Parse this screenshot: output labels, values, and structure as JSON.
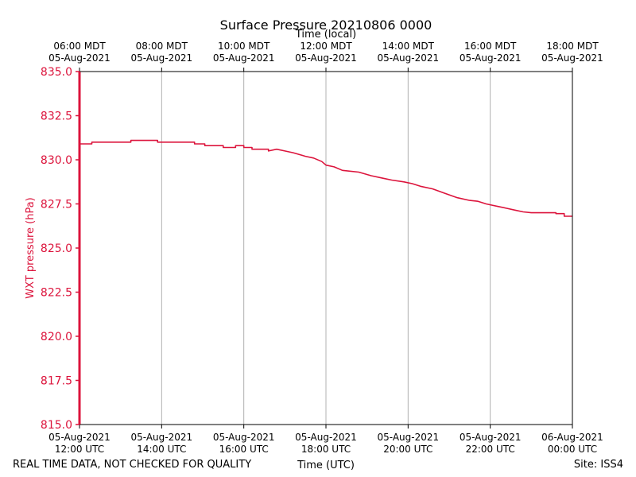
{
  "footer": {
    "disclaimer": "REAL TIME DATA, NOT CHECKED FOR QUALITY",
    "site": "Site: ISS4"
  },
  "chart_data": {
    "type": "line",
    "title": "Surface Pressure 20210806 0000",
    "xlabel_bottom": "Time (UTC)",
    "xlabel_top": "Time (local)",
    "ylabel": "WXT pressure (hPa)",
    "ylim": [
      815.0,
      835.0
    ],
    "xlim_hours_utc": [
      12,
      24
    ],
    "grid": "vertical",
    "colors": {
      "series": "#dc143c",
      "grid": "#b0b0b0",
      "axis": "#000000"
    },
    "yticks": [
      {
        "value": 815.0,
        "label": "815.0"
      },
      {
        "value": 817.5,
        "label": "817.5"
      },
      {
        "value": 820.0,
        "label": "820.0"
      },
      {
        "value": 822.5,
        "label": "822.5"
      },
      {
        "value": 825.0,
        "label": "825.0"
      },
      {
        "value": 827.5,
        "label": "827.5"
      },
      {
        "value": 830.0,
        "label": "830.0"
      },
      {
        "value": 832.5,
        "label": "832.5"
      },
      {
        "value": 835.0,
        "label": "835.0"
      }
    ],
    "xticks_bottom": [
      {
        "hour": 12,
        "date": "05-Aug-2021",
        "time": "12:00 UTC"
      },
      {
        "hour": 14,
        "date": "05-Aug-2021",
        "time": "14:00 UTC"
      },
      {
        "hour": 16,
        "date": "05-Aug-2021",
        "time": "16:00 UTC"
      },
      {
        "hour": 18,
        "date": "05-Aug-2021",
        "time": "18:00 UTC"
      },
      {
        "hour": 20,
        "date": "05-Aug-2021",
        "time": "20:00 UTC"
      },
      {
        "hour": 22,
        "date": "05-Aug-2021",
        "time": "22:00 UTC"
      },
      {
        "hour": 24,
        "date": "06-Aug-2021",
        "time": "00:00 UTC"
      }
    ],
    "xticks_top": [
      {
        "hour": 12,
        "time": "06:00 MDT",
        "date": "05-Aug-2021"
      },
      {
        "hour": 14,
        "time": "08:00 MDT",
        "date": "05-Aug-2021"
      },
      {
        "hour": 16,
        "time": "10:00 MDT",
        "date": "05-Aug-2021"
      },
      {
        "hour": 18,
        "time": "12:00 MDT",
        "date": "05-Aug-2021"
      },
      {
        "hour": 20,
        "time": "14:00 MDT",
        "date": "05-Aug-2021"
      },
      {
        "hour": 22,
        "time": "16:00 MDT",
        "date": "05-Aug-2021"
      },
      {
        "hour": 24,
        "time": "18:00 MDT",
        "date": "05-Aug-2021"
      }
    ],
    "series": [
      {
        "name": "WXT pressure",
        "initial_spike": {
          "hour": 12.0,
          "from": 815.0,
          "to": 835.0
        },
        "x_hours": [
          12.0,
          12.3,
          12.3,
          13.25,
          13.25,
          13.9,
          13.9,
          14.5,
          14.5,
          14.8,
          14.8,
          15.05,
          15.05,
          15.5,
          15.5,
          15.8,
          15.8,
          16.0,
          16.0,
          16.2,
          16.2,
          16.6,
          16.6,
          16.8,
          16.8,
          17.0,
          17.0,
          17.2,
          17.2,
          17.5,
          17.5,
          17.7,
          17.9,
          18.0,
          18.2,
          18.4,
          18.8,
          19.1,
          19.4,
          19.6,
          19.9,
          20.1,
          20.3,
          20.6,
          20.9,
          21.2,
          21.5,
          21.7,
          21.9,
          22.0,
          22.2,
          22.4,
          22.6,
          22.8,
          23.0,
          23.1,
          23.2,
          23.6,
          23.6,
          23.8,
          23.8,
          24.0
        ],
        "values": [
          830.9,
          830.9,
          831.0,
          831.0,
          831.1,
          831.1,
          831.0,
          831.0,
          831.0,
          831.0,
          830.9,
          830.9,
          830.8,
          830.8,
          830.7,
          830.7,
          830.8,
          830.8,
          830.7,
          830.7,
          830.6,
          830.6,
          830.5,
          830.6,
          830.6,
          830.5,
          830.5,
          830.4,
          830.4,
          830.2,
          830.2,
          830.1,
          829.9,
          829.7,
          829.6,
          829.4,
          829.3,
          829.1,
          828.95,
          828.85,
          828.75,
          828.65,
          828.5,
          828.35,
          828.1,
          827.85,
          827.7,
          827.65,
          827.5,
          827.45,
          827.35,
          827.25,
          827.15,
          827.05,
          827.0,
          827.0,
          827.0,
          827.0,
          826.95,
          826.95,
          826.8,
          826.8
        ]
      }
    ]
  }
}
